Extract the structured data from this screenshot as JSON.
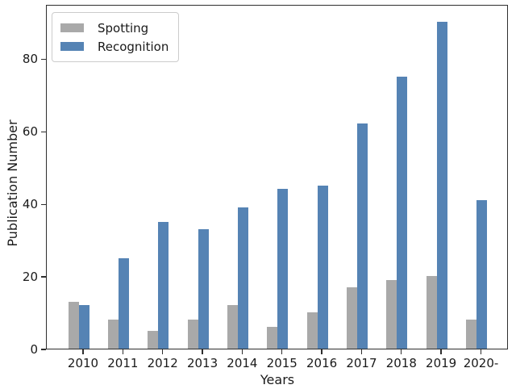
{
  "chart_data": {
    "type": "bar",
    "title": "",
    "xlabel": "Years",
    "ylabel": "Publication Number",
    "categories": [
      "2010",
      "2011",
      "2012",
      "2013",
      "2014",
      "2015",
      "2016",
      "2017",
      "2018",
      "2019",
      "2020-"
    ],
    "series": [
      {
        "name": "Spotting",
        "color": "#a9a9a9",
        "values": [
          13,
          8,
          5,
          8,
          12,
          6,
          10,
          17,
          19,
          20,
          8
        ]
      },
      {
        "name": "Recognition",
        "color": "#5583b4",
        "values": [
          12,
          25,
          35,
          33,
          39,
          44,
          45,
          62,
          75,
          90,
          41
        ]
      }
    ],
    "ylim": [
      0,
      95
    ],
    "yticks": [
      0,
      20,
      40,
      60,
      80
    ],
    "legend_position": "upper left",
    "grid": false,
    "colors": {
      "axis": "#2e2e2e",
      "text": "#1a1a1a",
      "background": "#ffffff"
    }
  }
}
